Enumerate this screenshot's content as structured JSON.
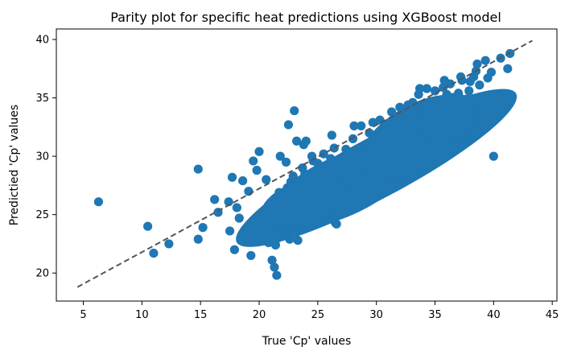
{
  "chart_data": {
    "type": "scatter",
    "title": "Parity plot for specific heat predictions using XGBoost model",
    "xlabel": "True 'Cp' values",
    "ylabel": "Predictied 'Cp' values",
    "xlim": [
      2.7,
      45.4
    ],
    "ylim": [
      17.6,
      40.9
    ],
    "xticks": [
      5,
      10,
      15,
      20,
      25,
      30,
      35,
      40,
      45
    ],
    "yticks": [
      20,
      25,
      30,
      35,
      40
    ],
    "grid": false,
    "colors": {
      "points": "#1f77b4",
      "parity_line": "#555555"
    },
    "parity_line": {
      "x": [
        4.5,
        43.3
      ],
      "y": [
        18.8,
        39.9
      ]
    },
    "series": [
      {
        "x": [
          6.3,
          10.5,
          11.0,
          12.3,
          14.8,
          14.8,
          15.2,
          16.2,
          16.5,
          17.4,
          17.5,
          17.9,
          17.7,
          18.1,
          18.3,
          18.6,
          19.1,
          19.5,
          19.8,
          20.0,
          20.6,
          20.8,
          20.9,
          21.1,
          21.3,
          21.5,
          21.6,
          21.7,
          21.8,
          22.1,
          22.4,
          22.6,
          22.3,
          22.9,
          23.2,
          23.6,
          23.8,
          24.1,
          24.5,
          24.8,
          25.0,
          25.3,
          25.8,
          26.1,
          26.4,
          26.7,
          27.0,
          27.4,
          27.7,
          28.0,
          28.3,
          28.7,
          29.0,
          29.3,
          29.7,
          30.0,
          30.3,
          30.6,
          31.0,
          31.3,
          31.6,
          32.0,
          32.3,
          32.6,
          33.0,
          33.3,
          33.6,
          34.0,
          34.3,
          34.6,
          35.0,
          35.3,
          35.7,
          36.0,
          36.3,
          36.7,
          37.0,
          37.3,
          37.7,
          38.0,
          38.3,
          38.6,
          39.0,
          39.3,
          39.8,
          40.2,
          40.6,
          41.2,
          41.4,
          22.5,
          23.1,
          23.0,
          23.9,
          24.6,
          26.5,
          26.9,
          27.8,
          29.2,
          30.4,
          31.5,
          32.9,
          34.4,
          35.6,
          36.2,
          37.4,
          38.8,
          36.9,
          35.1,
          33.8,
          33.4,
          32.2,
          30.9,
          29.6,
          28.5,
          27.2,
          26.0,
          24.9,
          23.7,
          22.9,
          21.9,
          20.4,
          24.2,
          25.7,
          27.6,
          28.9,
          30.1,
          31.8,
          33.1,
          34.8,
          36.6,
          37.9,
          39.5,
          21.0,
          21.4,
          22.7,
          23.4,
          25.5,
          26.2,
          28.1,
          29.4,
          30.8,
          32.5,
          33.7,
          35.4,
          22.0,
          23.3,
          24.4,
          25.1,
          26.8,
          27.5,
          28.8,
          29.9,
          31.1,
          32.7,
          34.2,
          35.8,
          37.2,
          38.5,
          40.0,
          19.3,
          20.2,
          21.2,
          24.0,
          26.6
        ],
        "y": [
          26.1,
          24.0,
          21.7,
          22.5,
          28.9,
          22.9,
          23.9,
          26.3,
          25.2,
          26.1,
          23.6,
          22.0,
          28.2,
          25.6,
          24.7,
          27.9,
          27.0,
          29.6,
          28.8,
          30.4,
          28.0,
          22.6,
          24.4,
          21.1,
          20.5,
          19.8,
          23.0,
          26.9,
          30.0,
          25.8,
          27.3,
          22.9,
          29.5,
          24.6,
          31.3,
          26.3,
          31.0,
          27.4,
          30.0,
          27.0,
          29.4,
          26.4,
          27.6,
          29.8,
          30.7,
          28.1,
          29.6,
          30.6,
          30.2,
          31.5,
          29.2,
          32.6,
          30.2,
          31.0,
          32.9,
          30.8,
          33.1,
          31.4,
          32.0,
          33.8,
          31.9,
          34.2,
          32.8,
          33.2,
          34.0,
          33.4,
          35.3,
          34.2,
          35.8,
          34.0,
          35.6,
          34.1,
          35.9,
          35.3,
          36.2,
          34.8,
          35.4,
          36.5,
          34.9,
          36.4,
          36.8,
          37.9,
          34.3,
          38.2,
          37.2,
          35.0,
          38.4,
          37.5,
          38.8,
          32.7,
          24.7,
          33.9,
          28.5,
          29.6,
          24.3,
          27.2,
          28.4,
          28.9,
          27.7,
          28.4,
          30.6,
          31.5,
          33.2,
          31.8,
          32.8,
          36.1,
          33.2,
          31.1,
          30.5,
          31.0,
          29.3,
          28.7,
          27.5,
          26.9,
          25.8,
          26.2,
          28.4,
          29.0,
          28.3,
          26.1,
          23.2,
          25.7,
          26.9,
          28.6,
          29.9,
          31.6,
          33.0,
          34.6,
          33.7,
          34.2,
          35.6,
          36.7,
          25.3,
          22.4,
          27.8,
          26.4,
          30.2,
          31.8,
          32.6,
          32.0,
          31.4,
          30.9,
          35.8,
          34.0,
          23.8,
          22.8,
          25.1,
          26.9,
          25.5,
          27.0,
          29.0,
          28.1,
          32.2,
          34.4,
          33.5,
          36.5,
          36.8,
          37.3,
          30.0,
          21.5,
          24.1,
          25.4,
          31.3,
          24.2
        ]
      }
    ]
  }
}
